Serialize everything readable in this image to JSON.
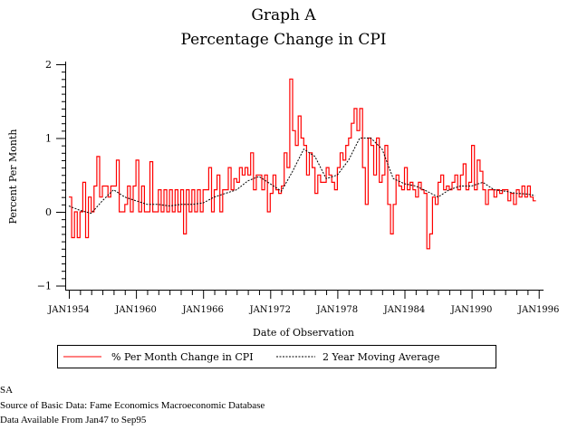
{
  "chart_data": {
    "type": "line",
    "title": "Graph A",
    "subtitle": "Percentage Change in CPI",
    "xlabel": "Date of Observation",
    "ylabel": "Percent Per Month",
    "ylim": [
      -1,
      2
    ],
    "yticks": [
      "2",
      "1",
      "0",
      "−1"
    ],
    "ytick_values": [
      2,
      1,
      0,
      -1
    ],
    "xlim": [
      1954,
      1996
    ],
    "xticks": [
      "JAN1954",
      "JAN1960",
      "JAN1966",
      "JAN1972",
      "JAN1978",
      "JAN1984",
      "JAN1990",
      "JAN1996"
    ],
    "xtick_values": [
      1954,
      1960,
      1966,
      1972,
      1978,
      1984,
      1990,
      1996
    ],
    "grid": false,
    "legend_placement": "bottom",
    "series": [
      {
        "name": "% Per Month Change in CPI",
        "color": "#ff0000",
        "style": "solid",
        "start": "1954-01",
        "frequency": "quarterly",
        "values": [
          0.2,
          -0.35,
          0,
          -0.35,
          0,
          0.4,
          -0.35,
          0.2,
          0,
          0.35,
          0.75,
          0.2,
          0.35,
          0.35,
          0.2,
          0.35,
          0.35,
          0.7,
          0,
          0,
          0.1,
          0.35,
          0,
          0.35,
          0.7,
          0,
          0.35,
          0,
          0,
          0.68,
          0,
          0,
          0.3,
          0,
          0.3,
          0,
          0.3,
          0,
          0.3,
          0,
          0.3,
          -0.3,
          0.3,
          0,
          0.3,
          0,
          0.3,
          0,
          0.3,
          0.3,
          0.6,
          0,
          0.3,
          0.5,
          0,
          0.3,
          0.3,
          0.6,
          0.3,
          0.45,
          0.4,
          0.6,
          0.5,
          0.6,
          0.5,
          0.8,
          0.3,
          0.5,
          0.5,
          0.3,
          0.5,
          0,
          0.25,
          0.5,
          0.3,
          0.25,
          0.35,
          0.8,
          0.6,
          1.8,
          1.1,
          0.9,
          1.3,
          1.0,
          0.9,
          0.5,
          0.8,
          0.6,
          0.25,
          0.5,
          0.4,
          0.4,
          0.6,
          0.5,
          0.4,
          0.3,
          0.6,
          0.8,
          0.7,
          0.9,
          1.0,
          1.2,
          1.4,
          1.1,
          1.4,
          0.6,
          0.1,
          1.0,
          0.9,
          0.5,
          1.0,
          0.4,
          0.5,
          0.9,
          0.1,
          -0.3,
          0.1,
          0.5,
          0.35,
          0.3,
          0.6,
          0.3,
          0.4,
          0.3,
          0.2,
          0.4,
          0.3,
          0.25,
          -0.5,
          -0.3,
          0.2,
          0.1,
          0.4,
          0.5,
          0.3,
          0.35,
          0.3,
          0.4,
          0.5,
          0.3,
          0.5,
          0.65,
          0.3,
          0.4,
          0.9,
          0.3,
          0.7,
          0.55,
          0.3,
          0.1,
          0.3,
          0.3,
          0.2,
          0.3,
          0.25,
          0.3,
          0.3,
          0.15,
          0.25,
          0.1,
          0.3,
          0.2,
          0.35,
          0.2,
          0.35,
          0.2,
          0.15
        ]
      },
      {
        "name": "2 Year Moving Average",
        "color": "#000000",
        "style": "dashed",
        "x": [
          "1954-01",
          "1955-01",
          "1956-01",
          "1957-01",
          "1958-01",
          "1959-01",
          "1960-01",
          "1961-01",
          "1962-01",
          "1963-01",
          "1964-01",
          "1965-01",
          "1966-01",
          "1967-01",
          "1968-01",
          "1969-01",
          "1970-01",
          "1971-01",
          "1972-01",
          "1973-01",
          "1974-01",
          "1975-01",
          "1976-01",
          "1977-01",
          "1978-01",
          "1979-01",
          "1980-01",
          "1981-01",
          "1982-01",
          "1983-01",
          "1984-01",
          "1985-01",
          "1986-01",
          "1987-01",
          "1988-01",
          "1989-01",
          "1990-01",
          "1991-01",
          "1992-01",
          "1993-01",
          "1994-01",
          "1995-01",
          "1995-09"
        ],
        "values": [
          0.08,
          0.02,
          -0.02,
          0.15,
          0.3,
          0.2,
          0.15,
          0.1,
          0.1,
          0.08,
          0.1,
          0.1,
          0.12,
          0.2,
          0.25,
          0.3,
          0.42,
          0.48,
          0.38,
          0.28,
          0.55,
          0.85,
          0.75,
          0.45,
          0.5,
          0.7,
          1.0,
          1.0,
          0.85,
          0.45,
          0.38,
          0.35,
          0.28,
          0.2,
          0.3,
          0.35,
          0.35,
          0.4,
          0.3,
          0.28,
          0.25,
          0.24,
          0.22
        ]
      }
    ]
  },
  "footer": {
    "line1": "SA",
    "line2": "Source of Basic Data: Fame Economics Macroeconomic Database",
    "line3": "Data Available From Jan47 to Sep95"
  }
}
